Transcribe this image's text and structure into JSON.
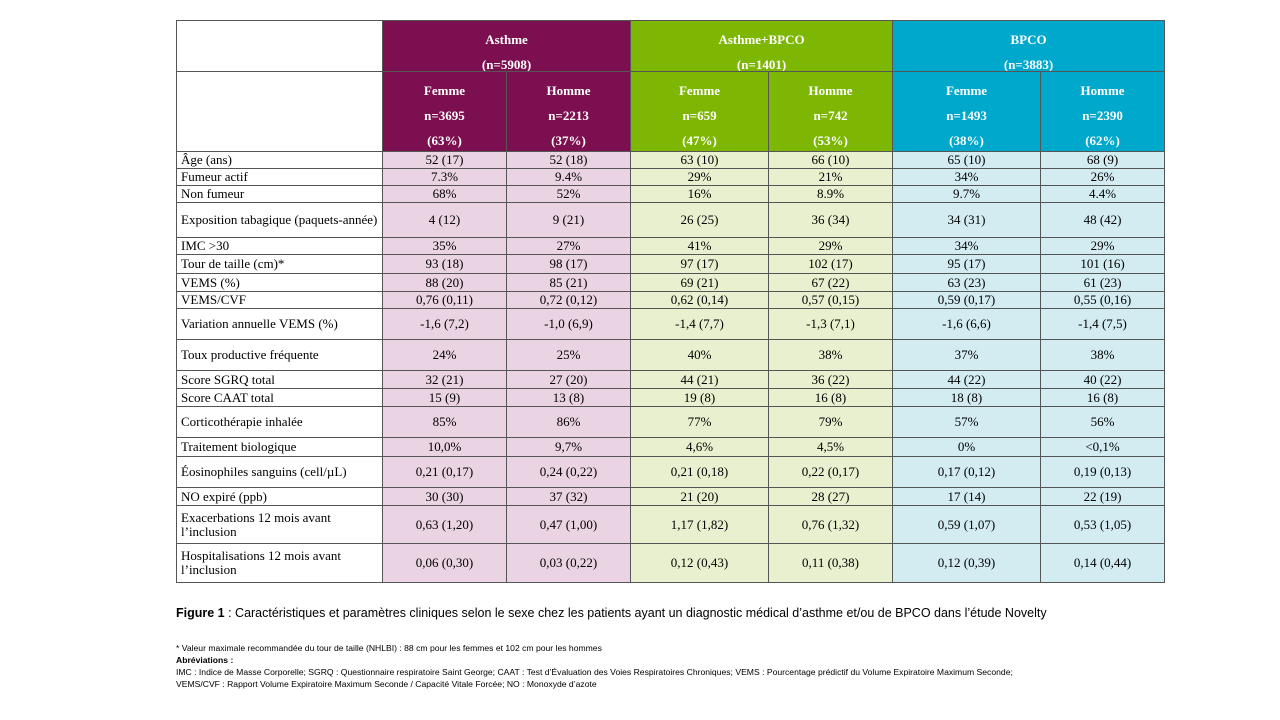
{
  "groups": [
    {
      "name": "Asthme",
      "n": "(n=5908)",
      "color": "#7b0f4f"
    },
    {
      "name": "Asthme+BPCO",
      "n": "(n=1401)",
      "color": "#7db703"
    },
    {
      "name": "BPCO",
      "n": "(n=3883)",
      "color": "#00a8cc"
    }
  ],
  "subgroups": [
    {
      "sex": "Femme",
      "n": "n=3695",
      "pct": "(63%)"
    },
    {
      "sex": "Homme",
      "n": "n=2213",
      "pct": "(37%)"
    },
    {
      "sex": "Femme",
      "n": "n=659",
      "pct": "(47%)"
    },
    {
      "sex": "Homme",
      "n": "n=742",
      "pct": "(53%)"
    },
    {
      "sex": "Femme",
      "n": "n=1493",
      "pct": "(38%)"
    },
    {
      "sex": "Homme",
      "n": "n=2390",
      "pct": "(62%)"
    }
  ],
  "rows": [
    {
      "label": "Âge (ans)",
      "values": [
        "52 (17)",
        "52 (18)",
        "63 (10)",
        "66 (10)",
        "65 (10)",
        "68 (9)"
      ]
    },
    {
      "label": "Fumeur actif",
      "values": [
        "7.3%",
        "9.4%",
        "29%",
        "21%",
        "34%",
        "26%"
      ]
    },
    {
      "label": "Non fumeur",
      "values": [
        "68%",
        "52%",
        "16%",
        "8.9%",
        "9.7%",
        "4.4%"
      ]
    },
    {
      "label": "Exposition tabagique (paquets-année)",
      "values": [
        "4 (12)",
        "9 (21)",
        "26 (25)",
        "36 (34)",
        "34 (31)",
        "48 (42)"
      ]
    },
    {
      "label": "IMC >30",
      "values": [
        "35%",
        "27%",
        "41%",
        "29%",
        "34%",
        "29%"
      ]
    },
    {
      "label": "Tour de taille (cm)*",
      "values": [
        "93 (18)",
        "98 (17)",
        "97 (17)",
        "102 (17)",
        "95 (17)",
        "101 (16)"
      ]
    },
    {
      "label": "VEMS (%)",
      "values": [
        "88 (20)",
        "85 (21)",
        "69 (21)",
        "67 (22)",
        "63 (23)",
        "61 (23)"
      ]
    },
    {
      "label": "VEMS/CVF",
      "values": [
        "0,76 (0,11)",
        "0,72 (0,12)",
        "0,62 (0,14)",
        "0,57 (0,15)",
        "0,59 (0,17)",
        "0,55 (0,16)"
      ]
    },
    {
      "label": "Variation annuelle VEMS (%)",
      "values": [
        "-1,6 (7,2)",
        "-1,0 (6,9)",
        "-1,4 (7,7)",
        "-1,3 (7,1)",
        "-1,6 (6,6)",
        "-1,4 (7,5)"
      ]
    },
    {
      "label": "Toux productive fréquente",
      "values": [
        "24%",
        "25%",
        "40%",
        "38%",
        "37%",
        "38%"
      ]
    },
    {
      "label": "Score SGRQ total",
      "values": [
        "32 (21)",
        "27 (20)",
        "44 (21)",
        "36 (22)",
        "44 (22)",
        "40 (22)"
      ]
    },
    {
      "label": "Score CAAT total",
      "values": [
        "15 (9)",
        "13 (8)",
        "19 (8)",
        "16 (8)",
        "18 (8)",
        "16 (8)"
      ]
    },
    {
      "label": "Corticothérapie inhalée",
      "values": [
        "85%",
        "86%",
        "77%",
        "79%",
        "57%",
        "56%"
      ]
    },
    {
      "label": "Traitement biologique",
      "values": [
        "10,0%",
        "9,7%",
        "4,6%",
        "4,5%",
        "0%",
        "<0,1%"
      ]
    },
    {
      "label": "Éosinophiles sanguins (cell/µL)",
      "values": [
        "0,21 (0,17)",
        "0,24 (0,22)",
        "0,21 (0,18)",
        "0,22 (0,17)",
        "0,17 (0,12)",
        "0,19 (0,13)"
      ]
    },
    {
      "label": "NO expiré (ppb)",
      "values": [
        "30 (30)",
        "37 (32)",
        "21 (20)",
        "28 (27)",
        "17 (14)",
        "22 (19)"
      ]
    },
    {
      "label": "Exacerbations 12 mois avant l’inclusion",
      "values": [
        "0,63 (1,20)",
        "0,47 (1,00)",
        "1,17 (1,82)",
        "0,76 (1,32)",
        "0,59 (1,07)",
        "0,53 (1,05)"
      ]
    },
    {
      "label": "Hospitalisations 12 mois avant l’inclusion",
      "values": [
        "0,06 (0,30)",
        "0,03 (0,22)",
        "0,12 (0,43)",
        "0,11 (0,38)",
        "0,12 (0,39)",
        "0,14 (0,44)"
      ]
    }
  ],
  "caption": {
    "label": "Figure 1",
    "text": " : Caractéristiques et paramètres cliniques selon le sexe chez les patients ayant un diagnostic médical d’asthme et/ou de BPCO dans l’étude Novelty"
  },
  "footnotes": {
    "waist": "* Valeur maximale recommandée du tour de taille (NHLBI) : 88 cm pour les femmes et 102 cm pour les hommes",
    "abbr_title": "Abréviations :",
    "abbr_line1": "IMC : Indice de Masse Corporelle; SGRQ : Questionnaire respiratoire Saint George; CAAT : Test d’Évaluation des Voies Respiratoires Chroniques; VEMS : Pourcentage prédictif du Volume Expiratoire Maximum Seconde;",
    "abbr_line2": "VEMS/CVF : Rapport Volume Expiratoire Maximum Seconde / Capacité Vitale Forcée; NO : Monoxyde d’azote"
  }
}
